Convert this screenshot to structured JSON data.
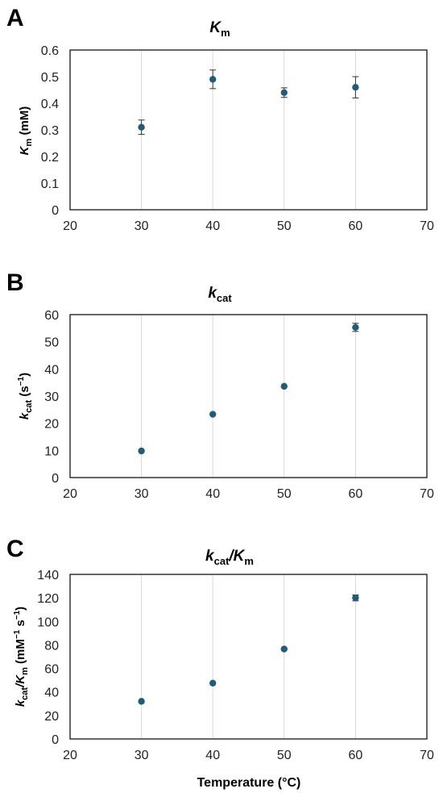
{
  "chart_data": [
    {
      "type": "scatter",
      "panel": "A",
      "title": {
        "main": "K",
        "sub": "m"
      },
      "ylabel": {
        "main": "K",
        "sub": "m",
        "rest": " (mM)"
      },
      "xlabel": "",
      "xlim": [
        20,
        70
      ],
      "ylim": [
        0,
        0.6
      ],
      "xticks": [
        "20",
        "30",
        "40",
        "50",
        "60",
        "70"
      ],
      "yticks": [
        "0",
        "0.1",
        "0.2",
        "0.3",
        "0.4",
        "0.5",
        "0.6"
      ],
      "grid": "vertical",
      "points": [
        {
          "x": 30,
          "y": 0.31,
          "err": 0.027
        },
        {
          "x": 40,
          "y": 0.49,
          "err": 0.035
        },
        {
          "x": 50,
          "y": 0.44,
          "err": 0.018
        },
        {
          "x": 60,
          "y": 0.46,
          "err": 0.04
        }
      ]
    },
    {
      "type": "scatter",
      "panel": "B",
      "title": {
        "main": "k",
        "sub": "cat"
      },
      "ylabel": {
        "main": "k",
        "sub": "cat",
        "rest": " (s",
        "sup": "−1",
        "tail": ")"
      },
      "xlabel": "",
      "xlim": [
        20,
        70
      ],
      "ylim": [
        0,
        60
      ],
      "xticks": [
        "20",
        "30",
        "40",
        "50",
        "60",
        "70"
      ],
      "yticks": [
        "0",
        "10",
        "20",
        "30",
        "40",
        "50",
        "60"
      ],
      "grid": "vertical",
      "points": [
        {
          "x": 30,
          "y": 9.8,
          "err": 0
        },
        {
          "x": 40,
          "y": 23.3,
          "err": 0
        },
        {
          "x": 50,
          "y": 33.6,
          "err": 0
        },
        {
          "x": 60,
          "y": 55.3,
          "err": 1.5
        }
      ]
    },
    {
      "type": "scatter",
      "panel": "C",
      "title": {
        "main": "k",
        "sub": "cat",
        "mid": "/K",
        "sub2": "m"
      },
      "ylabel": {
        "main": "k",
        "sub": "cat",
        "mid": "/K",
        "sub2": "m",
        "rest": " (mM",
        "sup": "−1",
        "rest2": " s",
        "sup2": "−1",
        "tail": ")"
      },
      "xlabel": "Temperature (°C)",
      "xlim": [
        20,
        70
      ],
      "ylim": [
        0,
        140
      ],
      "xticks": [
        "20",
        "30",
        "40",
        "50",
        "60",
        "70"
      ],
      "yticks": [
        "0",
        "20",
        "40",
        "60",
        "80",
        "100",
        "120",
        "140"
      ],
      "grid": "vertical",
      "points": [
        {
          "x": 30,
          "y": 32,
          "err": 0
        },
        {
          "x": 40,
          "y": 47.5,
          "err": 0
        },
        {
          "x": 50,
          "y": 76.5,
          "err": 0
        },
        {
          "x": 60,
          "y": 120,
          "err": 2.5
        }
      ]
    }
  ],
  "colors": {
    "marker": "#1f5c7a",
    "grid": "#d9d9d9",
    "axis": "#000000",
    "errorbar": "#333333"
  }
}
